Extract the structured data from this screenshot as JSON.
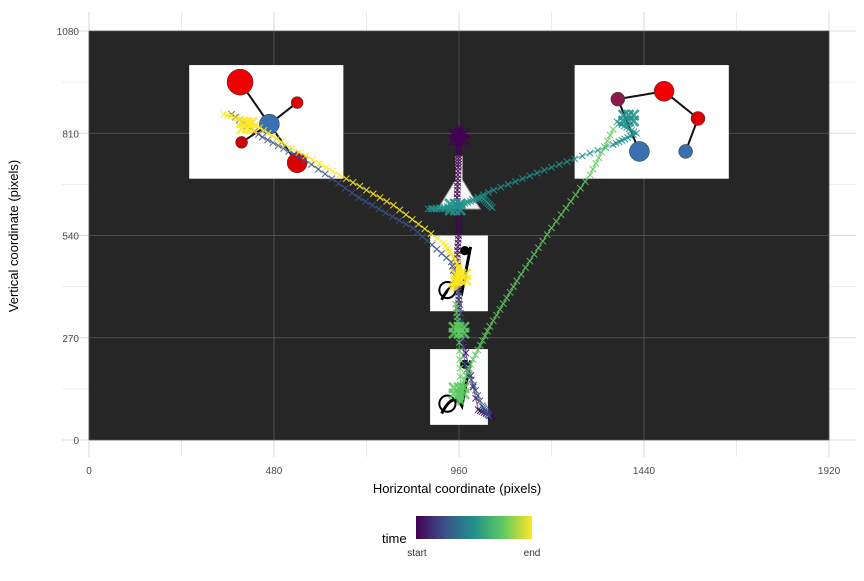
{
  "chart_data": {
    "type": "scatter",
    "title": "",
    "xlabel": "Horizontal coordinate (pixels)",
    "ylabel": "Vertical coordinate (pixels)",
    "xlim": [
      -70,
      1990
    ],
    "ylim": [
      0,
      1080
    ],
    "xticks": [
      0,
      480,
      960,
      1440,
      1920
    ],
    "yticks": [
      0,
      270,
      540,
      810,
      1080
    ],
    "xtick_labels": [
      "0",
      "480",
      "960",
      "1440",
      "1920"
    ],
    "ytick_labels": [
      "0",
      "270",
      "540",
      "810",
      "1080"
    ],
    "grid": true,
    "background_panel": "#262626",
    "legend": {
      "title": "time",
      "position": "bottom",
      "low_label": "start",
      "high_label": "end",
      "colors": [
        "#440154",
        "#3b528b",
        "#21918c",
        "#5ec962",
        "#fde725"
      ]
    },
    "stimulus_images": [
      {
        "name": "molecule-left",
        "xmin": 260,
        "xmax": 660,
        "ymin": 690,
        "ymax": 990
      },
      {
        "name": "molecule-right",
        "xmin": 1260,
        "xmax": 1660,
        "ymin": 690,
        "ymax": 990
      },
      {
        "name": "flask",
        "xmin": 905,
        "xmax": 1015,
        "ymin": 610,
        "ymax": 750
      },
      {
        "name": "creature-top",
        "xmin": 885,
        "xmax": 1035,
        "ymin": 340,
        "ymax": 540
      },
      {
        "name": "creature-bottom",
        "xmin": 885,
        "xmax": 1035,
        "ymin": 40,
        "ymax": 240
      }
    ],
    "series": [
      {
        "color": "#440154",
        "points": [
          [
            962,
            825
          ],
          [
            960,
            780
          ],
          [
            958,
            720
          ],
          [
            955,
            640
          ],
          [
            960,
            560
          ],
          [
            955,
            480
          ],
          [
            960,
            400
          ],
          [
            958,
            320
          ],
          [
            1010,
            80
          ],
          [
            1050,
            60
          ]
        ]
      },
      {
        "color": "#3b528b",
        "points": [
          [
            370,
            860
          ],
          [
            450,
            800
          ],
          [
            560,
            740
          ],
          [
            700,
            640
          ],
          [
            840,
            560
          ],
          [
            940,
            470
          ],
          [
            960,
            380
          ],
          [
            975,
            200
          ],
          [
            1020,
            90
          ],
          [
            1040,
            60
          ]
        ]
      },
      {
        "color": "#21918c",
        "points": [
          [
            1370,
            840
          ],
          [
            1420,
            810
          ],
          [
            1360,
            780
          ],
          [
            1200,
            720
          ],
          [
            1050,
            660
          ],
          [
            940,
            610
          ],
          [
            880,
            610
          ],
          [
            960,
            620
          ],
          [
            1020,
            640
          ],
          [
            1050,
            610
          ]
        ]
      },
      {
        "color": "#5ec962",
        "points": [
          [
            1360,
            820
          ],
          [
            1300,
            700
          ],
          [
            1200,
            560
          ],
          [
            1110,
            420
          ],
          [
            1040,
            300
          ],
          [
            990,
            200
          ],
          [
            960,
            120
          ],
          [
            965,
            100
          ],
          [
            960,
            280
          ],
          [
            950,
            370
          ]
        ]
      },
      {
        "color": "#fde725",
        "points": [
          [
            350,
            860
          ],
          [
            420,
            840
          ],
          [
            510,
            780
          ],
          [
            650,
            700
          ],
          [
            790,
            620
          ],
          [
            920,
            520
          ],
          [
            960,
            460
          ],
          [
            960,
            430
          ],
          [
            940,
            400
          ],
          [
            965,
            420
          ]
        ]
      }
    ],
    "clusters": [
      {
        "color": "#fde725",
        "x": 410,
        "y": 830
      },
      {
        "color": "#fde725",
        "x": 965,
        "y": 430
      },
      {
        "color": "#5ec962",
        "x": 960,
        "y": 290
      },
      {
        "color": "#5ec962",
        "x": 960,
        "y": 130
      },
      {
        "color": "#21918c",
        "x": 950,
        "y": 615
      },
      {
        "color": "#21918c",
        "x": 1400,
        "y": 850
      },
      {
        "color": "#440154",
        "x": 960,
        "y": 800
      }
    ]
  }
}
